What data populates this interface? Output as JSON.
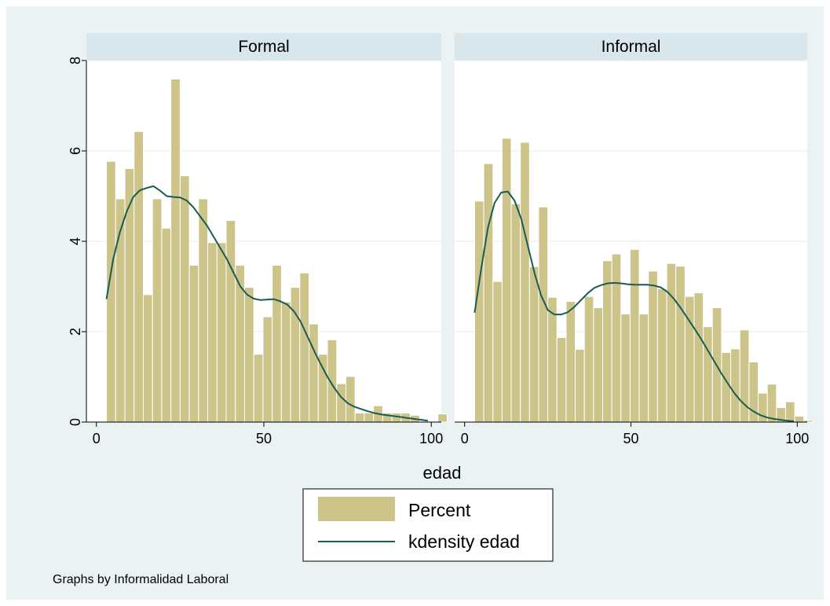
{
  "chart_data": {
    "type": "bar",
    "by_note": "Graphs by Informalidad Laboral",
    "xlabel": "edad",
    "ylabel": "",
    "xlim": [
      -3,
      103
    ],
    "ylim": [
      0,
      8
    ],
    "xticks": [
      0,
      50,
      100
    ],
    "yticks": [
      0,
      2,
      4,
      6,
      8
    ],
    "grid": true,
    "legend_position": "bottom",
    "legend": [
      {
        "label": "Percent",
        "kind": "bar"
      },
      {
        "label": "kdensity edad",
        "kind": "line"
      }
    ],
    "colors": {
      "outer_background": "#eaf2f3",
      "plot_background": "#ffffff",
      "strip_background": "#d9e6eb",
      "bar_fill": "#cdc48a",
      "bar_edge": "#ffffff",
      "kdensity_line": "#1a5c52",
      "gridline": "#e4eef1"
    },
    "bin_width": 2.75,
    "bin_start": 3,
    "panels": [
      {
        "title": "Formal",
        "percent": [
          5.77,
          4.94,
          5.61,
          6.43,
          2.82,
          4.94,
          4.29,
          7.59,
          5.45,
          3.47,
          4.94,
          3.97,
          3.97,
          4.46,
          3.47,
          2.98,
          1.5,
          2.33,
          3.47,
          2.66,
          2.98,
          3.3,
          2.17,
          1.5,
          1.82,
          0.85,
          1.01,
          0.2,
          0.2,
          0.36,
          0.2,
          0.2,
          0.2,
          0.15,
          0.0,
          0.0,
          0.18
        ],
        "kdensity": {
          "x": [
            3,
            5,
            7,
            9,
            11,
            13,
            15,
            17,
            19,
            21,
            23,
            25,
            27,
            29,
            31,
            33,
            35,
            37,
            39,
            41,
            43,
            45,
            47,
            49,
            51,
            53,
            55,
            57,
            59,
            61,
            63,
            65,
            67,
            69,
            71,
            73,
            75,
            77,
            79,
            81,
            83,
            85,
            87,
            89,
            91,
            93,
            95,
            97,
            99
          ],
          "y": [
            2.72,
            3.6,
            4.2,
            4.65,
            4.98,
            5.13,
            5.18,
            5.22,
            5.12,
            5.0,
            4.98,
            4.97,
            4.9,
            4.75,
            4.55,
            4.35,
            4.1,
            3.85,
            3.6,
            3.3,
            3.0,
            2.82,
            2.73,
            2.7,
            2.71,
            2.72,
            2.67,
            2.6,
            2.45,
            2.22,
            1.9,
            1.58,
            1.28,
            1.0,
            0.76,
            0.56,
            0.42,
            0.34,
            0.29,
            0.24,
            0.2,
            0.17,
            0.15,
            0.13,
            0.11,
            0.09,
            0.07,
            0.05,
            0.03
          ]
        }
      },
      {
        "title": "Informal",
        "percent": [
          4.89,
          5.72,
          3.11,
          6.28,
          4.83,
          6.19,
          3.44,
          4.76,
          2.76,
          1.87,
          2.67,
          1.61,
          2.78,
          2.53,
          3.57,
          3.72,
          2.39,
          3.82,
          2.39,
          3.34,
          2.95,
          3.51,
          3.45,
          2.78,
          2.86,
          2.11,
          2.53,
          1.54,
          1.62,
          2.04,
          1.33,
          0.64,
          0.84,
          0.32,
          0.45,
          0.13,
          0.04
        ],
        "kdensity": {
          "x": [
            3,
            5,
            7,
            9,
            11,
            13,
            15,
            17,
            19,
            21,
            23,
            25,
            27,
            29,
            31,
            33,
            35,
            37,
            39,
            41,
            43,
            45,
            47,
            49,
            51,
            53,
            55,
            57,
            59,
            61,
            63,
            65,
            67,
            69,
            71,
            73,
            75,
            77,
            79,
            81,
            83,
            85,
            87,
            89,
            91,
            93,
            95,
            97,
            99
          ],
          "y": [
            2.42,
            3.4,
            4.3,
            4.85,
            5.08,
            5.1,
            4.9,
            4.5,
            3.9,
            3.3,
            2.8,
            2.48,
            2.38,
            2.38,
            2.43,
            2.55,
            2.7,
            2.85,
            2.97,
            3.03,
            3.07,
            3.08,
            3.07,
            3.05,
            3.04,
            3.04,
            3.04,
            3.02,
            2.98,
            2.88,
            2.72,
            2.52,
            2.3,
            2.08,
            1.85,
            1.6,
            1.35,
            1.1,
            0.87,
            0.65,
            0.47,
            0.33,
            0.23,
            0.15,
            0.1,
            0.07,
            0.05,
            0.03,
            0.02
          ]
        }
      }
    ]
  }
}
